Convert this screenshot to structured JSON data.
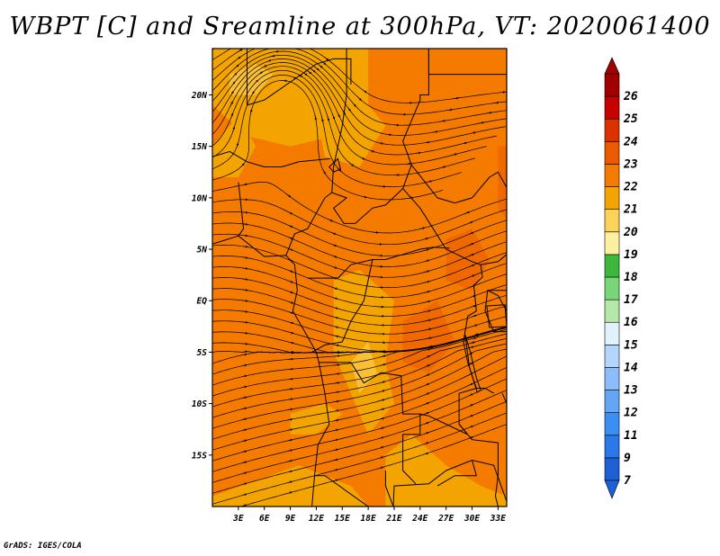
{
  "title": "WBPT [C] and Sreamline at 300hPa, VT: 2020061400",
  "footer": "GrADS: IGES/COLA",
  "chart_data": {
    "type": "map",
    "variable": "WBPT [C]",
    "overlay": "Streamline",
    "level": "300hPa",
    "valid_time": "2020061400",
    "lon_range": [
      0,
      34
    ],
    "lat_range": [
      -20,
      24.5
    ],
    "x_ticks": [
      "3E",
      "6E",
      "9E",
      "12E",
      "15E",
      "18E",
      "21E",
      "24E",
      "27E",
      "30E",
      "33E"
    ],
    "x_tick_values": [
      3,
      6,
      9,
      12,
      15,
      18,
      21,
      24,
      27,
      30,
      33
    ],
    "y_ticks": [
      "20N",
      "15N",
      "10N",
      "5N",
      "EQ",
      "5S",
      "10S",
      "15S"
    ],
    "y_tick_values": [
      20,
      15,
      10,
      5,
      0,
      -5,
      -10,
      -15
    ],
    "colorbar": {
      "labels": [
        "7",
        "9",
        "11",
        "12",
        "13",
        "14",
        "15",
        "16",
        "17",
        "18",
        "19",
        "20",
        "21",
        "22",
        "23",
        "24",
        "25",
        "26"
      ],
      "colors": [
        "#1e5fd6",
        "#2a78e8",
        "#3c8ff2",
        "#64a6f4",
        "#8cbdf8",
        "#b4d6fa",
        "#e2f2fc",
        "#b4e8a8",
        "#78d878",
        "#3cb83c",
        "#fff0a0",
        "#fcd25a",
        "#f4a400",
        "#f47a00",
        "#ec5a00",
        "#dc3200",
        "#c40000",
        "#a00000"
      ],
      "arrow_low": "#1e5fd6",
      "arrow_high": "#a00000"
    },
    "field_colors": {
      "c20": "#fcd25a",
      "c21": "#f4a400",
      "c22": "#f47a00",
      "c23": "#ec5a00"
    }
  }
}
